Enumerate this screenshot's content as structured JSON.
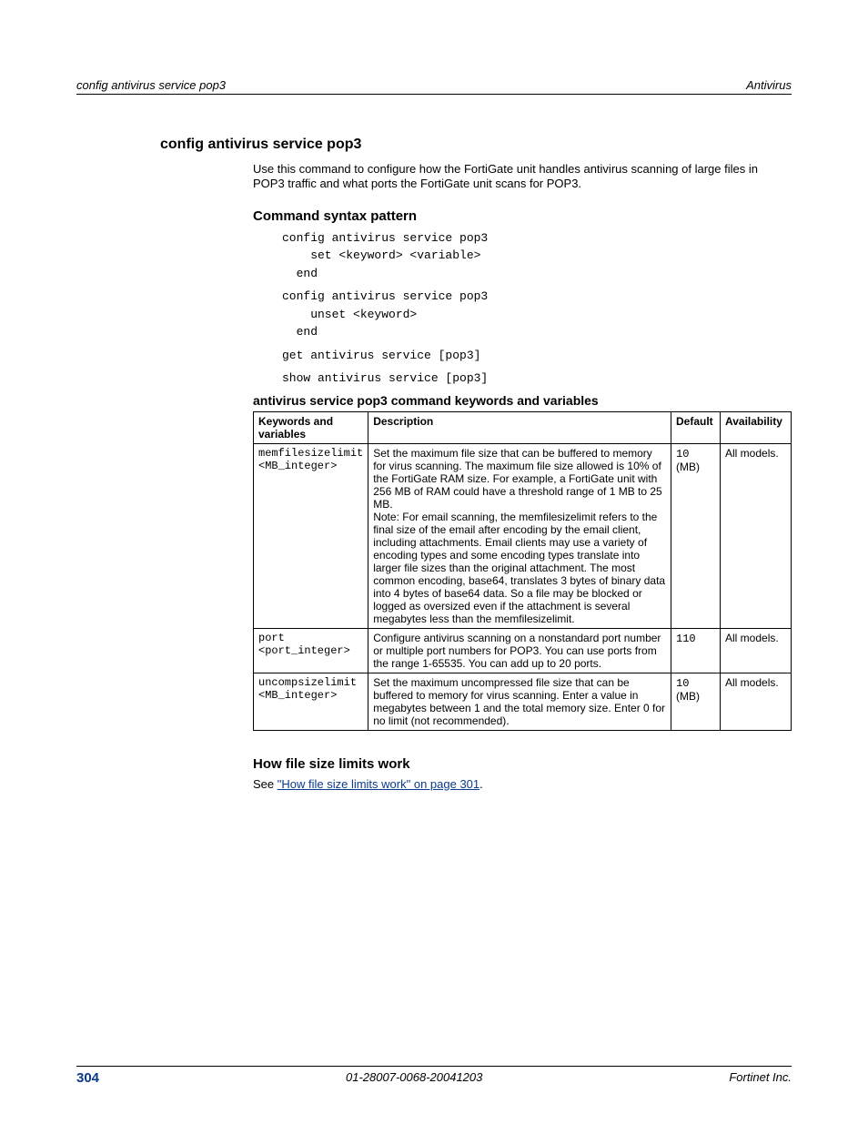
{
  "running_header": {
    "left": "config antivirus service pop3",
    "right": "Antivirus"
  },
  "title": "config antivirus service pop3",
  "intro_para": "Use this command to configure how the FortiGate unit handles antivirus scanning of large files in POP3 traffic and what ports the FortiGate unit scans for POP3.",
  "syntax": {
    "heading": "Command syntax pattern",
    "block1": "config antivirus service pop3\n    set <keyword> <variable>\n  end",
    "block2": "config antivirus service pop3\n    unset <keyword>\n  end",
    "block3": "get antivirus service [pop3]",
    "block4": "show antivirus service [pop3]"
  },
  "table": {
    "heading": "antivirus service pop3 command keywords and variables",
    "columns": {
      "kw": "Keywords and variables",
      "desc": "Description",
      "def": "Default",
      "av": "Availability"
    },
    "rows": [
      {
        "kw1": "memfilesizelimit",
        "kw2": "<MB_integer>",
        "desc": "Set the maximum file size that can be buffered to memory for virus scanning. The maximum file size allowed is 10% of the FortiGate RAM size. For example, a FortiGate unit with 256 MB of RAM could have a threshold range of 1 MB to 25 MB.\nNote: For email scanning, the memfilesizelimit refers to the final size of the email after encoding by the email client, including attachments. Email clients may use a variety of encoding types and some encoding types translate into larger file sizes than the original attachment. The most common encoding, base64, translates 3 bytes of binary data into 4 bytes of base64 data. So a file may be blocked or logged as oversized even if the attachment is several megabytes less than the memfilesizelimit.",
        "def_pre": "10",
        "def_post": " (MB)",
        "av": "All models."
      },
      {
        "kw1": "port",
        "kw2": "<port_integer>",
        "desc": "Configure antivirus scanning on a nonstandard port number or multiple port numbers for POP3. You can use ports from the range 1-65535. You can add up to 20 ports.",
        "def_pre": "110",
        "def_post": "",
        "av": "All models."
      },
      {
        "kw1": "uncompsizelimit",
        "kw2": "<MB_integer>",
        "desc": "Set the maximum uncompressed file size that can be buffered to memory for virus scanning. Enter a value in megabytes between 1 and the total memory size. Enter 0 for no limit (not recommended).",
        "def_pre": "10",
        "def_post": " (MB)",
        "av": "All models."
      }
    ]
  },
  "how_section": {
    "heading": "How file size limits work",
    "see_prefix": "See ",
    "see_link": "\"How file size limits work\" on page 301",
    "see_suffix": "."
  },
  "footer": {
    "page_number": "304",
    "doc_id": "01-28007-0068-20041203",
    "brand": "Fortinet Inc."
  }
}
